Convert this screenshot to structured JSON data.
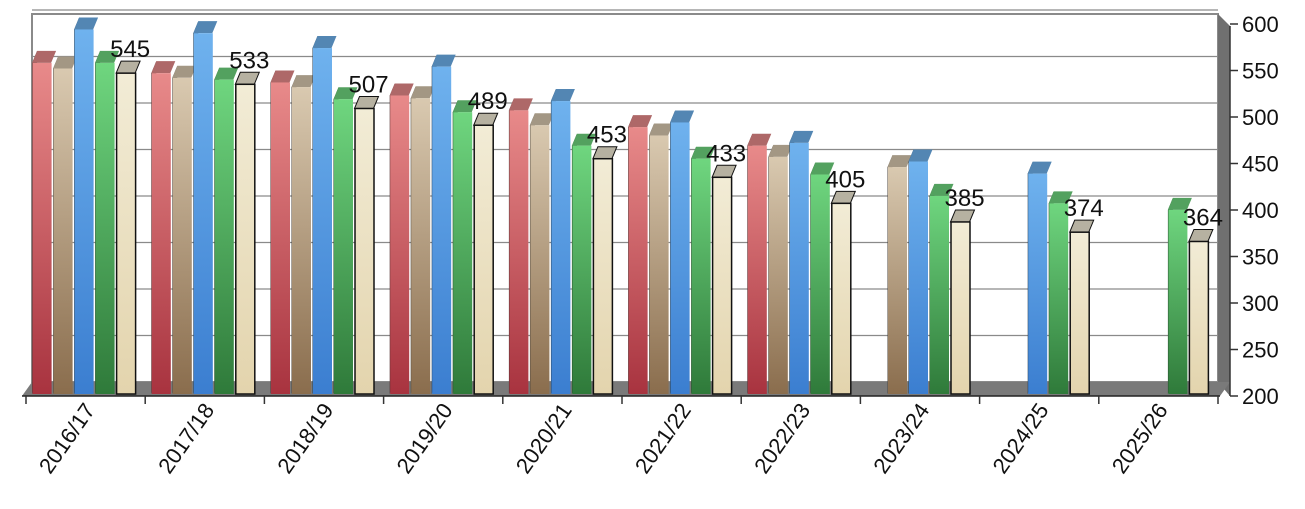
{
  "chart_data": {
    "type": "bar",
    "title": "",
    "xlabel": "",
    "ylabel": "",
    "ylim": [
      200,
      600
    ],
    "yticks": [
      200,
      250,
      300,
      350,
      400,
      450,
      500,
      550,
      600
    ],
    "categories": [
      "2016/17",
      "2017/18",
      "2018/19",
      "2019/20",
      "2020/21",
      "2021/22",
      "2022/23",
      "2023/24",
      "2024/25",
      "2025/26"
    ],
    "grid": true,
    "legend": "none",
    "style": "3d-clustered",
    "series": [
      {
        "color": "#e88a8a",
        "values": [
          556,
          545,
          535,
          521,
          505,
          487,
          467,
          null,
          null,
          null
        ]
      },
      {
        "color": "#d9c9b0",
        "values": [
          550,
          540,
          530,
          518,
          489,
          478,
          455,
          444,
          null,
          null
        ]
      },
      {
        "color": "#6fb2ee",
        "values": [
          592,
          588,
          572,
          552,
          515,
          492,
          470,
          450,
          437,
          null
        ]
      },
      {
        "color": "#6fd67f",
        "values": [
          556,
          538,
          517,
          503,
          467,
          453,
          436,
          413,
          405,
          398
        ]
      },
      {
        "color": "#f2ecd6",
        "values": [
          545,
          533,
          507,
          489,
          453,
          433,
          405,
          385,
          374,
          364
        ]
      }
    ],
    "data_labels": [
      545,
      533,
      507,
      489,
      453,
      433,
      405,
      385,
      374,
      364
    ]
  }
}
